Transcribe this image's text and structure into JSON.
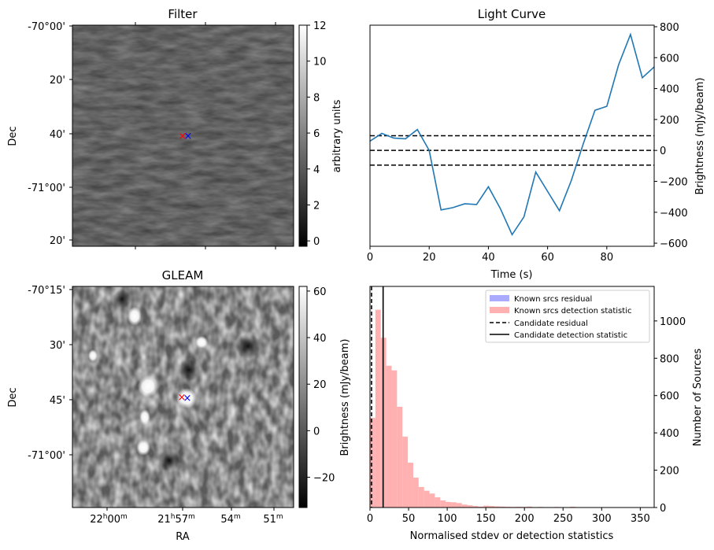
{
  "panels": {
    "filter": {
      "title": "Filter",
      "ylabel": "Dec",
      "ytick_labels": [
        "-70°00'",
        "20'",
        "40'",
        "-71°00'",
        "20'"
      ],
      "colorbar": {
        "label": "arbitrary units",
        "ticks": [
          0,
          2,
          4,
          6,
          8,
          10,
          12
        ],
        "range": [
          -0.3,
          12
        ]
      }
    },
    "gleam": {
      "title": "GLEAM",
      "ylabel": "Dec",
      "xlabel": "RA",
      "ytick_labels": [
        "-70°15'",
        "30'",
        "45'",
        "-71°00'"
      ],
      "xtick_labels": [
        {
          "h": "22",
          "hu": "h",
          "m": "00",
          "mu": "m"
        },
        {
          "h": "21",
          "hu": "h",
          "m": "57",
          "mu": "m"
        },
        {
          "h": "",
          "hu": "",
          "m": "54",
          "mu": "m"
        },
        {
          "h": "",
          "hu": "",
          "m": "51",
          "mu": "m"
        }
      ],
      "colorbar": {
        "ticks": [
          -20,
          0,
          20,
          40,
          60
        ],
        "range": [
          -33,
          62
        ]
      }
    }
  },
  "chart_data": [
    {
      "type": "line",
      "title": "Light Curve",
      "xlabel": "Time (s)",
      "ylabel": "Brightness (mJy/beam)",
      "xlim": [
        0,
        96
      ],
      "ylim": [
        -620,
        810
      ],
      "xticks": [
        0,
        20,
        40,
        60,
        80
      ],
      "yticks": [
        -600,
        -400,
        -200,
        0,
        200,
        400,
        600,
        800
      ],
      "x": [
        0,
        4,
        8,
        12,
        16,
        20,
        24,
        28,
        32,
        36,
        40,
        44,
        48,
        52,
        56,
        60,
        64,
        68,
        72,
        76,
        80,
        84,
        88,
        92,
        96
      ],
      "y": [
        60,
        110,
        80,
        75,
        135,
        0,
        -385,
        -370,
        -345,
        -350,
        -235,
        -375,
        -545,
        -430,
        -140,
        -265,
        -390,
        -195,
        40,
        260,
        285,
        555,
        750,
        470,
        540
      ],
      "color": "#1f77b4",
      "hlines": [
        {
          "y": 95,
          "style": "dashed"
        },
        {
          "y": 0,
          "style": "dashed"
        },
        {
          "y": -95,
          "style": "dashed"
        }
      ]
    },
    {
      "type": "bar",
      "title": "",
      "xlabel": "Normalised stdev or detection statistics",
      "ylabel": "Brightness (mJy/beam)",
      "ylabel_right": "Number of Sources",
      "xlim": [
        0,
        368
      ],
      "ylim": [
        0,
        1185
      ],
      "xticks": [
        0,
        50,
        100,
        150,
        200,
        250,
        300,
        350
      ],
      "yticks": [
        0,
        200,
        400,
        600,
        800,
        1000
      ],
      "bin_width": 7,
      "series": [
        {
          "name": "Known srcs residual",
          "color": "#aaaaff",
          "bins_start": [
            0
          ],
          "values": [
            45
          ]
        },
        {
          "name": "Known srcs detection statistic",
          "color": "#ffb0b0",
          "bins_start": [
            0,
            7,
            14,
            21,
            28,
            35,
            42,
            49,
            56,
            63,
            70,
            77,
            84,
            91,
            98,
            105,
            112,
            119,
            126,
            133,
            140,
            147,
            154,
            161,
            168,
            175,
            182,
            189,
            196,
            203,
            210,
            217,
            224,
            231,
            238,
            245,
            252,
            259,
            266,
            273,
            280,
            287,
            294,
            301,
            308,
            315,
            322,
            329,
            336,
            343
          ],
          "values": [
            480,
            1060,
            910,
            760,
            735,
            540,
            380,
            240,
            160,
            110,
            90,
            75,
            55,
            38,
            30,
            28,
            24,
            16,
            12,
            8,
            5,
            10,
            8,
            6,
            5,
            4,
            3,
            4,
            3,
            5,
            2,
            3,
            2,
            2,
            3,
            2,
            2,
            4,
            2,
            1,
            1,
            1,
            1,
            1,
            1,
            1,
            1,
            1,
            1,
            1
          ]
        }
      ],
      "vlines": [
        {
          "name": "Candidate residual",
          "x": 2,
          "style": "dashed"
        },
        {
          "name": "Candidate detection statistic",
          "x": 17,
          "style": "solid"
        }
      ]
    }
  ],
  "markers": [
    {
      "name": "red-x",
      "color": "#ff0000",
      "symbol": "×"
    },
    {
      "name": "blue-x",
      "color": "#0000ff",
      "symbol": "×"
    }
  ]
}
